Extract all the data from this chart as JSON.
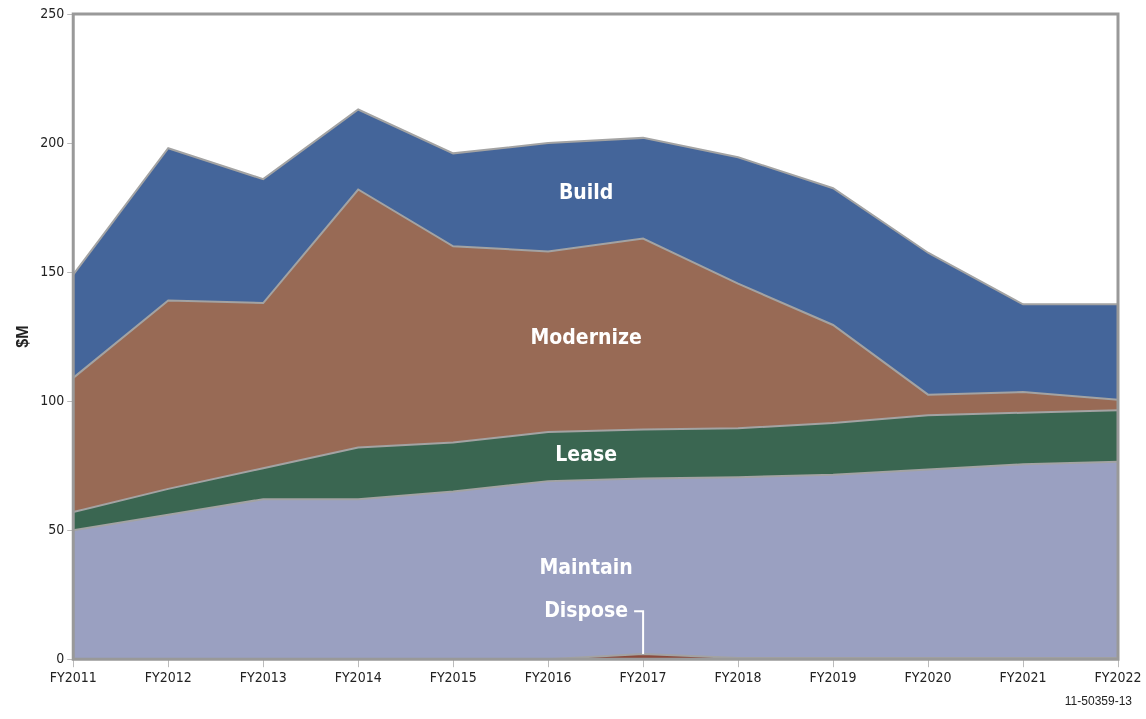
{
  "chart_data": {
    "type": "area",
    "ylabel": "$M",
    "categories": [
      "FY2011",
      "FY2012",
      "FY2013",
      "FY2014",
      "FY2015",
      "FY2016",
      "FY2017",
      "FY2018",
      "FY2019",
      "FY2020",
      "FY2021",
      "FY2022"
    ],
    "stacked": true,
    "ylim": [
      0,
      250
    ],
    "yticks": [
      0,
      50,
      100,
      150,
      200,
      250
    ],
    "grid": false,
    "legend": false,
    "marker": "none",
    "series": [
      {
        "name": "Dispose",
        "color": "#8b4a3c",
        "values": [
          0,
          0,
          0,
          0,
          0,
          0,
          2,
          0.5,
          0.5,
          0.5,
          0.5,
          0.5
        ]
      },
      {
        "name": "Maintain",
        "color": "#9aa0c1",
        "values": [
          50,
          56,
          62,
          62,
          65,
          69,
          68,
          70,
          71,
          73,
          75,
          76
        ]
      },
      {
        "name": "Lease",
        "color": "#3a6651",
        "values": [
          7,
          10,
          12,
          20,
          19,
          19,
          19,
          19,
          20,
          21,
          20,
          20
        ]
      },
      {
        "name": "Modernize",
        "color": "#986a55",
        "values": [
          52,
          73,
          64,
          100,
          76,
          70,
          74,
          56,
          38,
          8,
          8,
          4
        ]
      },
      {
        "name": "Build",
        "color": "#44659a",
        "values": [
          40,
          59,
          48,
          31,
          36,
          42,
          39,
          49,
          53,
          55,
          34,
          37
        ]
      }
    ],
    "annotations": [
      "11-50359-13"
    ]
  }
}
